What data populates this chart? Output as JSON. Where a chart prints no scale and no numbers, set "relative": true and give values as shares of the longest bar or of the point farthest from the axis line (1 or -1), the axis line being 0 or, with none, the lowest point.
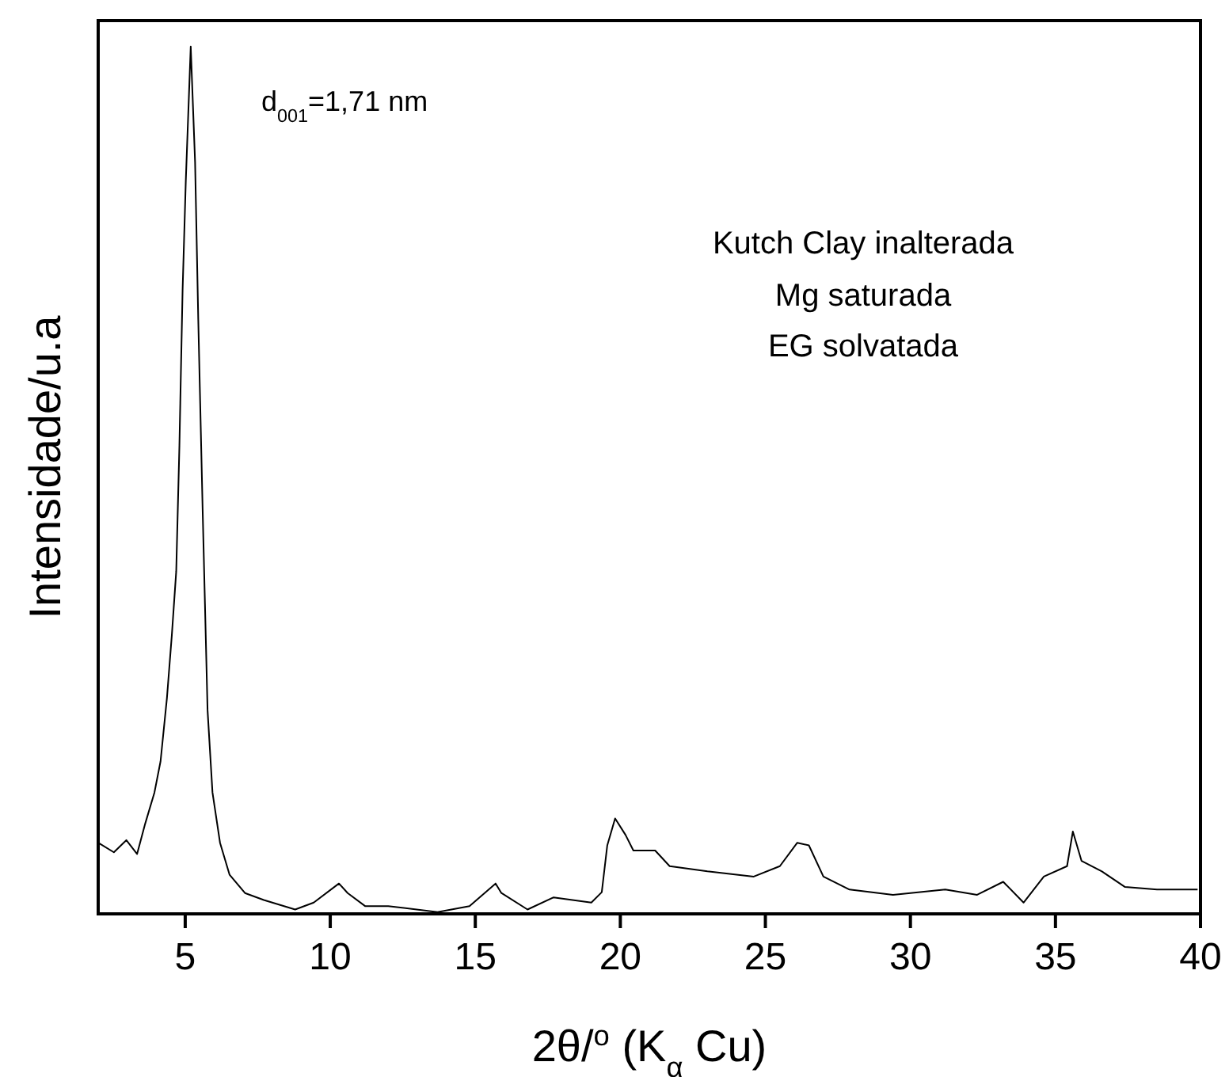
{
  "chart_data": {
    "type": "line",
    "xlabel": "2θ/$^{o}$ (K$_{α}$ Cu)",
    "ylabel": "Intensidade/u.a",
    "relative": true,
    "xlim": [
      2,
      40
    ],
    "xticks": [
      5,
      10,
      15,
      20,
      25,
      30,
      35,
      40
    ],
    "grid": false,
    "line_style": "solid",
    "annotations": [
      "d$_{001}$=1,71 nm",
      "Kutch Clay inalterada",
      "Mg saturada",
      "EG solvatada"
    ],
    "series": [
      {
        "color": "#000000",
        "x": [
          2.0,
          2.54,
          2.97,
          3.34,
          3.62,
          3.94,
          4.15,
          4.37,
          4.54,
          4.69,
          4.8,
          4.91,
          5.02,
          5.19,
          5.34,
          5.45,
          5.6,
          5.77,
          5.94,
          6.2,
          6.53,
          7.06,
          7.71,
          8.79,
          9.43,
          10.3,
          10.6,
          11.2,
          12.0,
          13.7,
          14.8,
          15.7,
          15.9,
          16.8,
          17.7,
          19.0,
          19.36,
          19.55,
          19.82,
          20.18,
          20.45,
          21.2,
          21.7,
          23.0,
          24.6,
          25.5,
          26.1,
          26.5,
          27.0,
          27.9,
          29.4,
          31.2,
          32.3,
          33.2,
          33.9,
          34.6,
          35.4,
          35.6,
          35.9,
          36.6,
          37.4,
          38.5,
          39.9
        ],
        "values": [
          0.082,
          0.071,
          0.085,
          0.069,
          0.104,
          0.14,
          0.176,
          0.249,
          0.322,
          0.395,
          0.54,
          0.72,
          0.845,
          1.0,
          0.867,
          0.685,
          0.467,
          0.235,
          0.14,
          0.082,
          0.045,
          0.024,
          0.016,
          0.005,
          0.013,
          0.035,
          0.024,
          0.009,
          0.009,
          0.002,
          0.009,
          0.035,
          0.024,
          0.005,
          0.019,
          0.013,
          0.025,
          0.079,
          0.11,
          0.091,
          0.073,
          0.073,
          0.055,
          0.049,
          0.043,
          0.055,
          0.082,
          0.079,
          0.043,
          0.028,
          0.022,
          0.028,
          0.022,
          0.037,
          0.013,
          0.043,
          0.055,
          0.095,
          0.061,
          0.049,
          0.031,
          0.028,
          0.028
        ]
      }
    ]
  }
}
